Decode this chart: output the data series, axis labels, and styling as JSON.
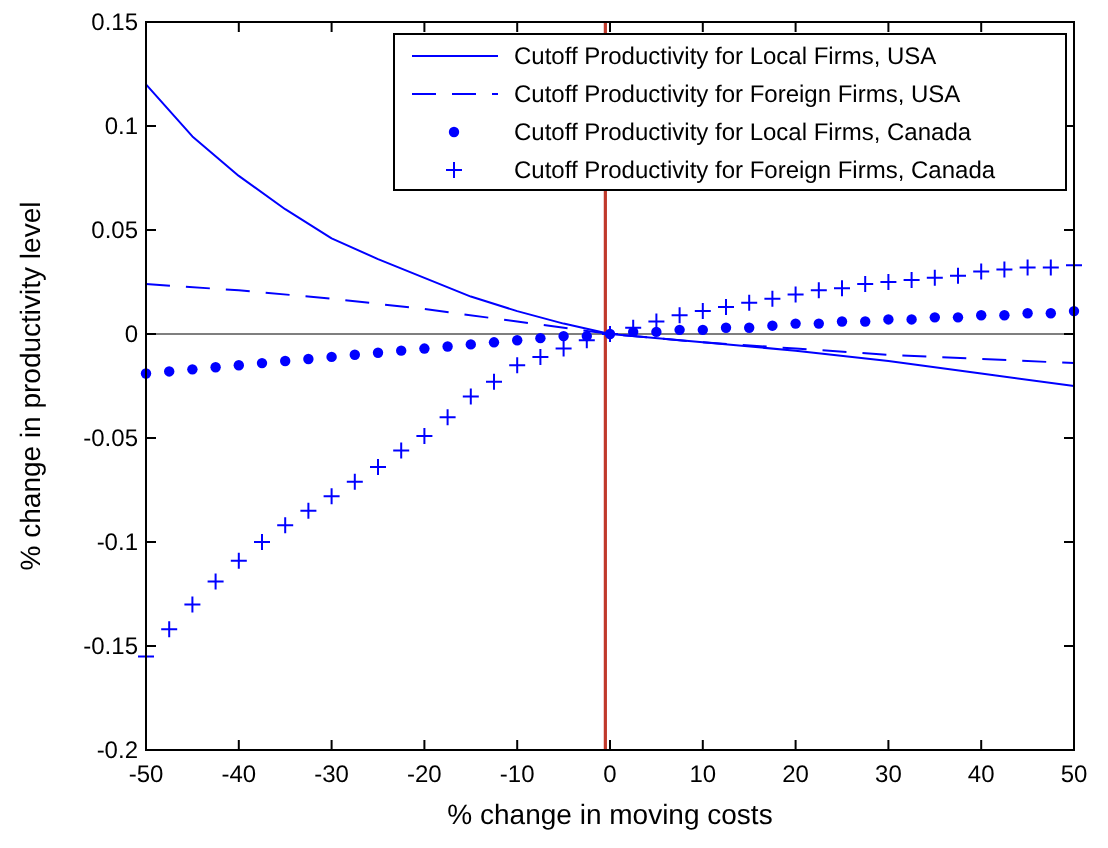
{
  "chart_data": {
    "type": "line",
    "xlabel": "% change in moving costs",
    "ylabel": "% change in productivity level",
    "xlim": [
      -50,
      50
    ],
    "ylim": [
      -0.2,
      0.15
    ],
    "xticks": [
      -50,
      -40,
      -30,
      -20,
      -10,
      0,
      10,
      20,
      30,
      40,
      50
    ],
    "yticks": [
      -0.2,
      -0.15,
      -0.1,
      -0.05,
      0,
      0.05,
      0.1,
      0.15
    ],
    "grid": false,
    "legend": "top right",
    "ref_lines": [
      {
        "axis": "y",
        "value": 0,
        "color": "#000000"
      },
      {
        "axis": "x",
        "value": -0.5,
        "color": "#c0392b"
      }
    ],
    "series": [
      {
        "name": "Cutoff Productivity for Local Firms, USA",
        "color": "#0000ff",
        "line_style": "solid",
        "marker": "none",
        "x": [
          -50,
          -45,
          -40,
          -35,
          -30,
          -25,
          -20,
          -15,
          -10,
          -5,
          0,
          10,
          20,
          30,
          40,
          50
        ],
        "values": [
          0.12,
          0.095,
          0.076,
          0.06,
          0.046,
          0.036,
          0.027,
          0.018,
          0.011,
          0.005,
          0,
          -0.004,
          -0.008,
          -0.013,
          -0.019,
          -0.025
        ]
      },
      {
        "name": "Cutoff Productivity for Foreign Firms, USA",
        "color": "#0000ff",
        "line_style": "dashed",
        "marker": "none",
        "x": [
          -50,
          -40,
          -30,
          -20,
          -10,
          0,
          10,
          20,
          30,
          40,
          50
        ],
        "values": [
          0.024,
          0.021,
          0.017,
          0.012,
          0.006,
          0,
          -0.004,
          -0.007,
          -0.01,
          -0.012,
          -0.014
        ]
      },
      {
        "name": "Cutoff Productivity for Local Firms, Canada",
        "type": "scatter",
        "color": "#0000ff",
        "marker": "circle",
        "x": [
          -50,
          -47.5,
          -45,
          -42.5,
          -40,
          -37.5,
          -35,
          -32.5,
          -30,
          -27.5,
          -25,
          -22.5,
          -20,
          -17.5,
          -15,
          -12.5,
          -10,
          -7.5,
          -5,
          -2.5,
          0,
          2.5,
          5,
          7.5,
          10,
          12.5,
          15,
          17.5,
          20,
          22.5,
          25,
          27.5,
          30,
          32.5,
          35,
          37.5,
          40,
          42.5,
          45,
          47.5,
          50
        ],
        "values": [
          -0.019,
          -0.018,
          -0.017,
          -0.016,
          -0.015,
          -0.014,
          -0.013,
          -0.012,
          -0.011,
          -0.01,
          -0.009,
          -0.008,
          -0.007,
          -0.006,
          -0.005,
          -0.004,
          -0.003,
          -0.002,
          -0.001,
          -0.001,
          0,
          0.001,
          0.001,
          0.002,
          0.002,
          0.003,
          0.003,
          0.004,
          0.005,
          0.005,
          0.006,
          0.006,
          0.007,
          0.007,
          0.008,
          0.008,
          0.009,
          0.009,
          0.01,
          0.01,
          0.011
        ]
      },
      {
        "name": "Cutoff Productivity for Foreign Firms, Canada",
        "type": "scatter",
        "color": "#0000ff",
        "marker": "cross",
        "x": [
          -50,
          -47.5,
          -45,
          -42.5,
          -40,
          -37.5,
          -35,
          -32.5,
          -30,
          -27.5,
          -25,
          -22.5,
          -20,
          -17.5,
          -15,
          -12.5,
          -10,
          -7.5,
          -5,
          -2.5,
          0,
          2.5,
          5,
          7.5,
          10,
          12.5,
          15,
          17.5,
          20,
          22.5,
          25,
          27.5,
          30,
          32.5,
          35,
          37.5,
          40,
          42.5,
          45,
          47.5,
          50
        ],
        "values": [
          -0.155,
          -0.142,
          -0.13,
          -0.119,
          -0.109,
          -0.1,
          -0.092,
          -0.085,
          -0.078,
          -0.071,
          -0.064,
          -0.056,
          -0.049,
          -0.04,
          -0.03,
          -0.023,
          -0.015,
          -0.011,
          -0.007,
          -0.003,
          0,
          0.003,
          0.006,
          0.009,
          0.011,
          0.013,
          0.015,
          0.017,
          0.019,
          0.021,
          0.022,
          0.024,
          0.025,
          0.026,
          0.027,
          0.028,
          0.03,
          0.031,
          0.032,
          0.032,
          0.033
        ]
      }
    ]
  }
}
